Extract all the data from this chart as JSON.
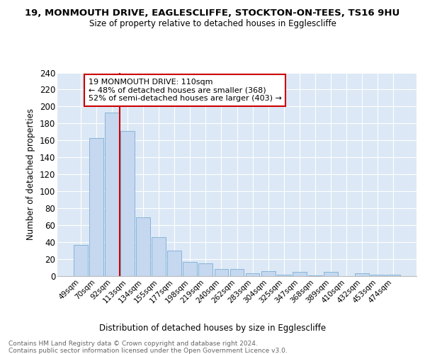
{
  "title1": "19, MONMOUTH DRIVE, EAGLESCLIFFE, STOCKTON-ON-TEES, TS16 9HU",
  "title2": "Size of property relative to detached houses in Egglescliffe",
  "xlabel": "Distribution of detached houses by size in Egglescliffe",
  "ylabel": "Number of detached properties",
  "categories": [
    "49sqm",
    "70sqm",
    "92sqm",
    "113sqm",
    "134sqm",
    "155sqm",
    "177sqm",
    "198sqm",
    "219sqm",
    "240sqm",
    "262sqm",
    "283sqm",
    "304sqm",
    "325sqm",
    "347sqm",
    "368sqm",
    "389sqm",
    "410sqm",
    "432sqm",
    "453sqm",
    "474sqm"
  ],
  "values": [
    37,
    163,
    193,
    171,
    69,
    46,
    30,
    17,
    15,
    8,
    8,
    3,
    6,
    2,
    5,
    1,
    5,
    0,
    3,
    2,
    2
  ],
  "bar_color": "#c5d8f0",
  "bar_edge_color": "#7badd4",
  "marker_label": "19 MONMOUTH DRIVE: 110sqm",
  "annotation_line1": "← 48% of detached houses are smaller (368)",
  "annotation_line2": "52% of semi-detached houses are larger (403) →",
  "annotation_box_color": "#ffffff",
  "annotation_box_edge": "#cc0000",
  "marker_line_color": "#cc0000",
  "background_color": "#dce8f5",
  "grid_color": "#ffffff",
  "footer_line1": "Contains HM Land Registry data © Crown copyright and database right 2024.",
  "footer_line2": "Contains public sector information licensed under the Open Government Licence v3.0.",
  "ylim": [
    0,
    240
  ],
  "yticks": [
    0,
    20,
    40,
    60,
    80,
    100,
    120,
    140,
    160,
    180,
    200,
    220,
    240
  ]
}
